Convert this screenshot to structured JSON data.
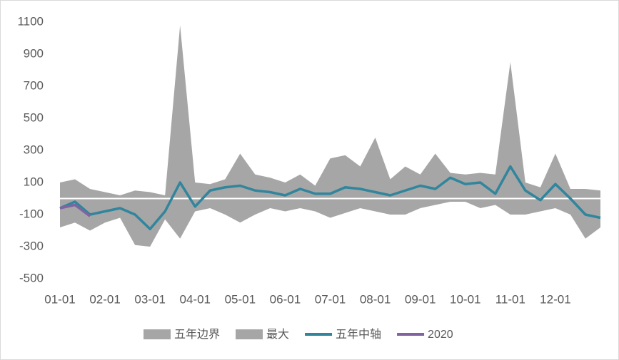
{
  "chart_data": {
    "type": "line",
    "categories": [
      "01-01",
      null,
      null,
      "02-01",
      null,
      null,
      "03-01",
      null,
      null,
      "04-01",
      null,
      null,
      "05-01",
      null,
      null,
      "06-01",
      null,
      null,
      "07-01",
      null,
      null,
      "08-01",
      null,
      null,
      "09-01",
      null,
      null,
      "10-01",
      null,
      null,
      "11-01",
      null,
      null,
      "12-01",
      null,
      null,
      null
    ],
    "ylim": [
      -500,
      1100
    ],
    "yticks": [
      -500,
      -300,
      -100,
      100,
      300,
      500,
      700,
      900,
      1100
    ],
    "series": [
      {
        "name": "五年边界",
        "kind": "area",
        "color": "#a6a6a6",
        "values": [
          -180,
          -150,
          -200,
          -150,
          -120,
          -290,
          -300,
          -130,
          -250,
          -80,
          -60,
          -100,
          -150,
          -100,
          -60,
          -80,
          -60,
          -80,
          -120,
          -90,
          -60,
          -80,
          -100,
          -100,
          -60,
          -40,
          -20,
          -20,
          -60,
          -40,
          -100,
          -100,
          -80,
          -60,
          -100,
          -250,
          -180
        ]
      },
      {
        "name": "最大",
        "kind": "area",
        "color": "#a6a6a6",
        "values": [
          100,
          120,
          60,
          40,
          20,
          50,
          40,
          20,
          1080,
          100,
          90,
          120,
          280,
          150,
          130,
          100,
          150,
          80,
          250,
          270,
          200,
          380,
          120,
          200,
          150,
          280,
          160,
          150,
          160,
          150,
          850,
          100,
          70,
          280,
          60,
          60,
          50
        ]
      },
      {
        "name": "五年中轴",
        "kind": "line",
        "color": "#31859c",
        "values": [
          -60,
          -20,
          -100,
          -80,
          -60,
          -100,
          -190,
          -80,
          100,
          -50,
          50,
          70,
          80,
          50,
          40,
          20,
          60,
          30,
          30,
          70,
          60,
          40,
          20,
          50,
          80,
          60,
          130,
          90,
          100,
          30,
          200,
          50,
          -10,
          90,
          0,
          -100,
          -120
        ]
      },
      {
        "name": "2020",
        "kind": "line",
        "color": "#8064a2",
        "values": [
          -60,
          -40,
          -110,
          null,
          null,
          null,
          null,
          null,
          null,
          null,
          null,
          null,
          null,
          null,
          null,
          null,
          null,
          null,
          null,
          null,
          null,
          null,
          null,
          null,
          null,
          null,
          null,
          null,
          null,
          null,
          null,
          null,
          null,
          null,
          null,
          null,
          null
        ]
      }
    ]
  }
}
